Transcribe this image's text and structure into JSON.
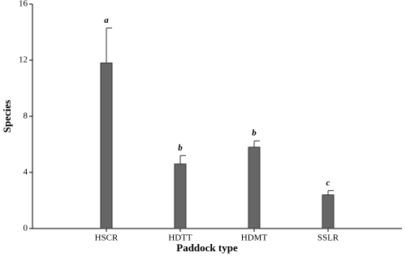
{
  "chart_data": {
    "type": "bar",
    "x_label": "Paddock type",
    "y_label": "Species",
    "categories": [
      "HSCR",
      "HDTT",
      "HDMT",
      "SSLR"
    ],
    "values": [
      11.8,
      4.6,
      5.8,
      2.4
    ],
    "errors": [
      2.5,
      0.6,
      0.45,
      0.3
    ],
    "annotations": [
      "a",
      "b",
      "b",
      "c"
    ],
    "color": "#666666",
    "ylim": [
      0,
      16
    ],
    "yticks": [
      0,
      4,
      8,
      12,
      16
    ]
  }
}
